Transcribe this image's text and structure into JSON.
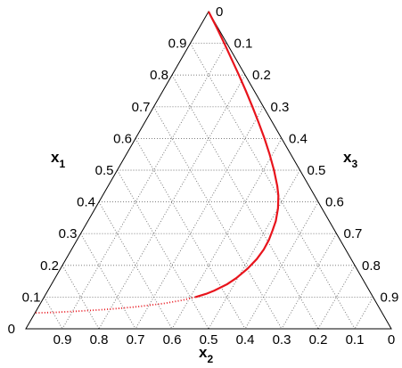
{
  "chart_data": {
    "type": "ternary-line",
    "axes": [
      {
        "id": "x1",
        "label_main": "x",
        "label_sub": "1",
        "ticks": [
          "0.1",
          "0.2",
          "0.3",
          "0.4",
          "0.5",
          "0.6",
          "0.7",
          "0.8",
          "0.9"
        ]
      },
      {
        "id": "x2",
        "label_main": "x",
        "label_sub": "2",
        "ticks": [
          "0.9",
          "0.8",
          "0.7",
          "0.6",
          "0.5",
          "0.4",
          "0.3",
          "0.2",
          "0.1",
          "0"
        ]
      },
      {
        "id": "x3",
        "label_main": "x",
        "label_sub": "3",
        "ticks": [
          "0",
          "0.1",
          "0.2",
          "0.3",
          "0.4",
          "0.5",
          "0.6",
          "0.7",
          "0.8",
          "0.9"
        ]
      }
    ],
    "corner_labels": {
      "top": "0",
      "bottom_left": "0",
      "bottom_right": "0"
    },
    "grid": true,
    "series": [
      {
        "color": "#e8141c",
        "solid_until_x3": 0.82,
        "points": [
          {
            "x1": 1.0,
            "x2": 0.0,
            "x3": 0.0
          },
          {
            "x1": 0.95,
            "x2": 0.003,
            "x3": 0.047
          },
          {
            "x1": 0.9,
            "x2": 0.007,
            "x3": 0.093
          },
          {
            "x1": 0.85,
            "x2": 0.012,
            "x3": 0.138
          },
          {
            "x1": 0.8,
            "x2": 0.017,
            "x3": 0.183
          },
          {
            "x1": 0.75,
            "x2": 0.023,
            "x3": 0.227
          },
          {
            "x1": 0.7,
            "x2": 0.03,
            "x3": 0.27
          },
          {
            "x1": 0.65,
            "x2": 0.038,
            "x3": 0.312
          },
          {
            "x1": 0.6,
            "x2": 0.047,
            "x3": 0.353
          },
          {
            "x1": 0.55,
            "x2": 0.058,
            "x3": 0.392
          },
          {
            "x1": 0.5,
            "x2": 0.071,
            "x3": 0.429
          },
          {
            "x1": 0.45,
            "x2": 0.087,
            "x3": 0.463
          },
          {
            "x1": 0.42,
            "x2": 0.099,
            "x3": 0.481
          },
          {
            "x1": 0.38,
            "x2": 0.12,
            "x3": 0.5
          },
          {
            "x1": 0.34,
            "x2": 0.146,
            "x3": 0.514
          },
          {
            "x1": 0.31,
            "x2": 0.17,
            "x3": 0.52
          },
          {
            "x1": 0.28,
            "x2": 0.195,
            "x3": 0.525
          },
          {
            "x1": 0.25,
            "x2": 0.224,
            "x3": 0.526
          },
          {
            "x1": 0.22,
            "x2": 0.258,
            "x3": 0.522
          },
          {
            "x1": 0.19,
            "x2": 0.298,
            "x3": 0.512
          },
          {
            "x1": 0.16,
            "x2": 0.344,
            "x3": 0.496
          },
          {
            "x1": 0.14,
            "x2": 0.38,
            "x3": 0.48
          },
          {
            "x1": 0.12,
            "x2": 0.425,
            "x3": 0.455
          },
          {
            "x1": 0.11,
            "x2": 0.452,
            "x3": 0.438
          },
          {
            "x1": 0.1,
            "x2": 0.486,
            "x3": 0.414
          },
          {
            "x1": 0.09,
            "x2": 0.527,
            "x3": 0.383
          },
          {
            "x1": 0.08,
            "x2": 0.582,
            "x3": 0.338
          },
          {
            "x1": 0.07,
            "x2": 0.657,
            "x3": 0.273
          },
          {
            "x1": 0.065,
            "x2": 0.706,
            "x3": 0.229
          },
          {
            "x1": 0.06,
            "x2": 0.764,
            "x3": 0.176
          },
          {
            "x1": 0.055,
            "x2": 0.838,
            "x3": 0.107
          },
          {
            "x1": 0.052,
            "x2": 0.89,
            "x3": 0.058
          },
          {
            "x1": 0.05,
            "x2": 0.95,
            "x3": 0.0
          }
        ]
      }
    ]
  }
}
